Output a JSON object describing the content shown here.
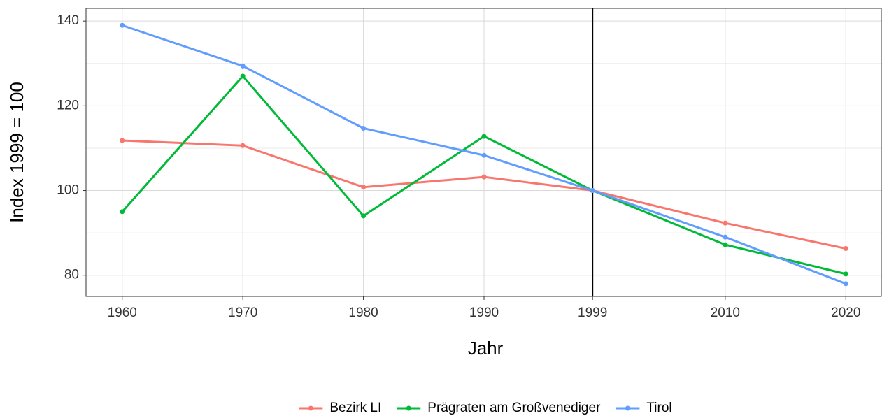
{
  "chart_data": {
    "type": "line",
    "x_label": "Jahr",
    "y_label": "Index 1999 = 100",
    "x": [
      1960,
      1970,
      1980,
      1990,
      1999,
      2010,
      2020
    ],
    "series": [
      {
        "name": "Bezirk LI",
        "color": "#F8766D",
        "values": [
          111.8,
          110.6,
          100.8,
          103.2,
          100,
          92.3,
          86.3
        ]
      },
      {
        "name": "Prägraten am Großvenediger",
        "color": "#00BA38",
        "values": [
          95,
          127,
          94,
          112.8,
          100,
          87.2,
          80.3
        ]
      },
      {
        "name": "Tirol",
        "color": "#619CFF",
        "values": [
          139,
          129.4,
          114.7,
          108.3,
          100,
          89,
          78
        ]
      }
    ],
    "xlim": [
      1957,
      2023
    ],
    "ylim": [
      75,
      143
    ],
    "xticks": [
      1960,
      1970,
      1980,
      1990,
      1999,
      2010,
      2020
    ],
    "yticks": [
      80,
      100,
      120,
      140
    ],
    "yminor": [
      90,
      110,
      130
    ],
    "vline": 1999,
    "grid": true,
    "legend": "bottom"
  }
}
